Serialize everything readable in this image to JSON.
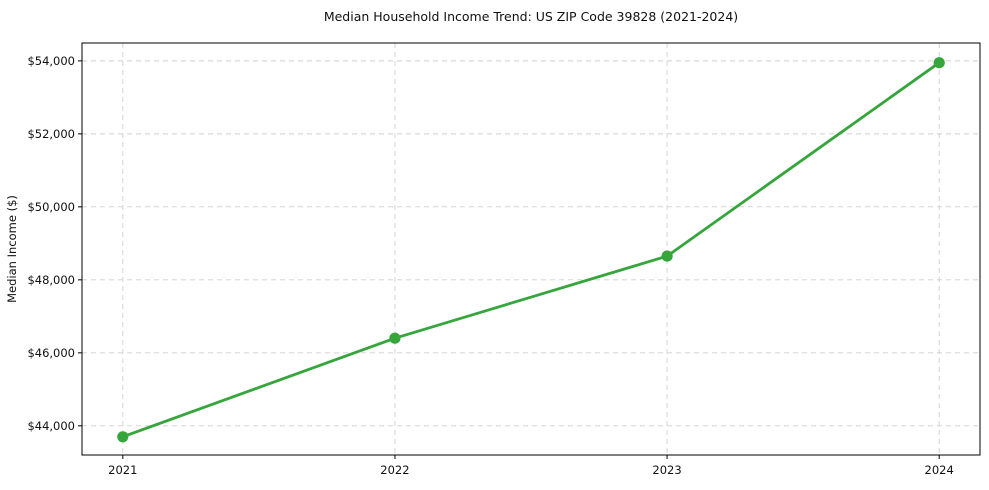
{
  "chart_data": {
    "type": "line",
    "title": "Median Household Income Trend: US ZIP Code 39828 (2021-2024)",
    "xlabel": "",
    "ylabel": "Median Income ($)",
    "x": [
      2021,
      2022,
      2023,
      2024
    ],
    "x_tick_labels": [
      "2021",
      "2022",
      "2023",
      "2024"
    ],
    "series": [
      {
        "name": "Median Household Income",
        "values": [
          43700,
          46400,
          48650,
          53950
        ]
      }
    ],
    "y_ticks": [
      44000,
      46000,
      48000,
      50000,
      52000,
      54000
    ],
    "y_tick_labels": [
      "$44,000",
      "$46,000",
      "$48,000",
      "$50,000",
      "$52,000",
      "$54,000"
    ],
    "xlim": [
      2020.85,
      2024.15
    ],
    "ylim": [
      43200,
      54490
    ],
    "grid": true,
    "grid_linestyle": "dashed",
    "legend_position": "none",
    "marker": "circle",
    "colors": {
      "line": "#35a53c",
      "marker": "#35a53c",
      "grid": "#cfcfcf",
      "spine": "#000000",
      "tick": "#000000",
      "text": "#111111",
      "background": "#ffffff"
    }
  }
}
